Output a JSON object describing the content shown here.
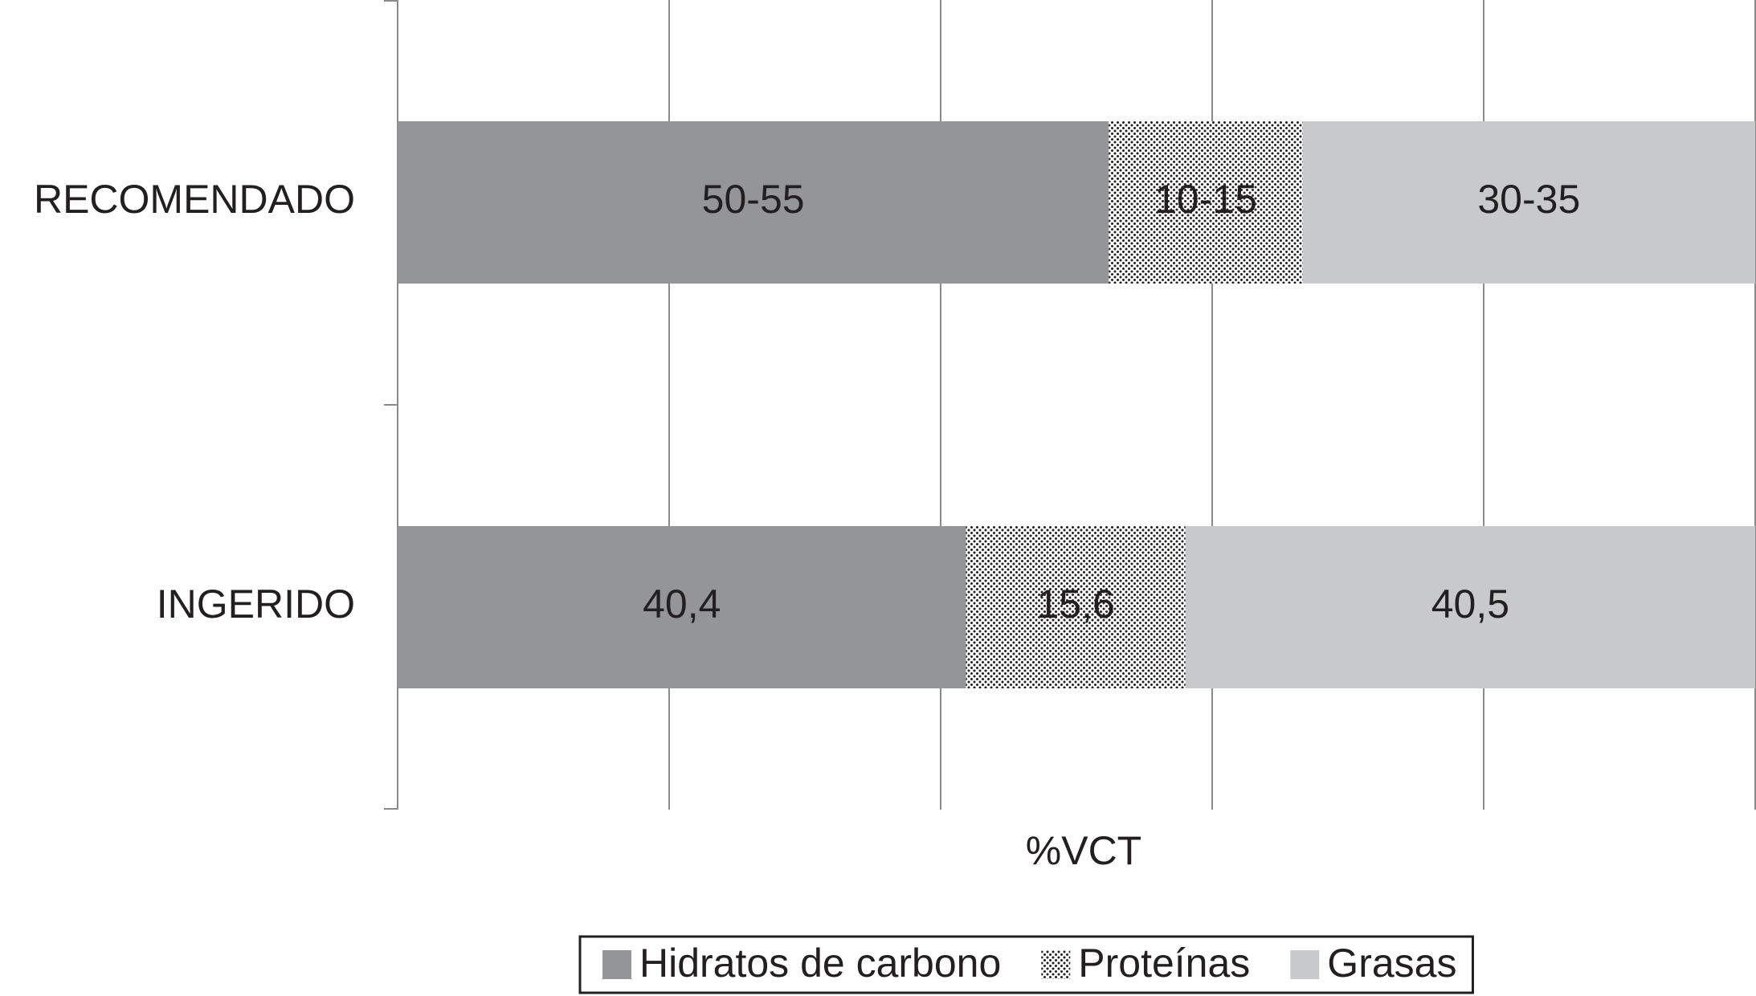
{
  "chart_data": {
    "type": "bar",
    "orientation": "horizontal",
    "stacked": "percent",
    "categories": [
      "RECOMENDADO",
      "INGERIDO"
    ],
    "series": [
      {
        "name": "Hidratos de carbono",
        "color": "#939598",
        "values": [
          55,
          40.4
        ],
        "value_labels": [
          "50-55",
          "40,4"
        ]
      },
      {
        "name": "Proteínas",
        "color": "#231f20",
        "pattern": "dots",
        "values": [
          15,
          15.6
        ],
        "value_labels": [
          "10-15",
          "15,6"
        ]
      },
      {
        "name": "Grasas",
        "color": "#c8c9cb",
        "values": [
          35,
          40.5
        ],
        "value_labels": [
          "30-35",
          "40,5"
        ]
      }
    ],
    "xlabel": "%VCT",
    "xlim": [
      0,
      100
    ],
    "xticks": [
      0,
      20,
      40,
      60,
      80,
      100
    ],
    "grid": true,
    "legend": "bottom"
  }
}
